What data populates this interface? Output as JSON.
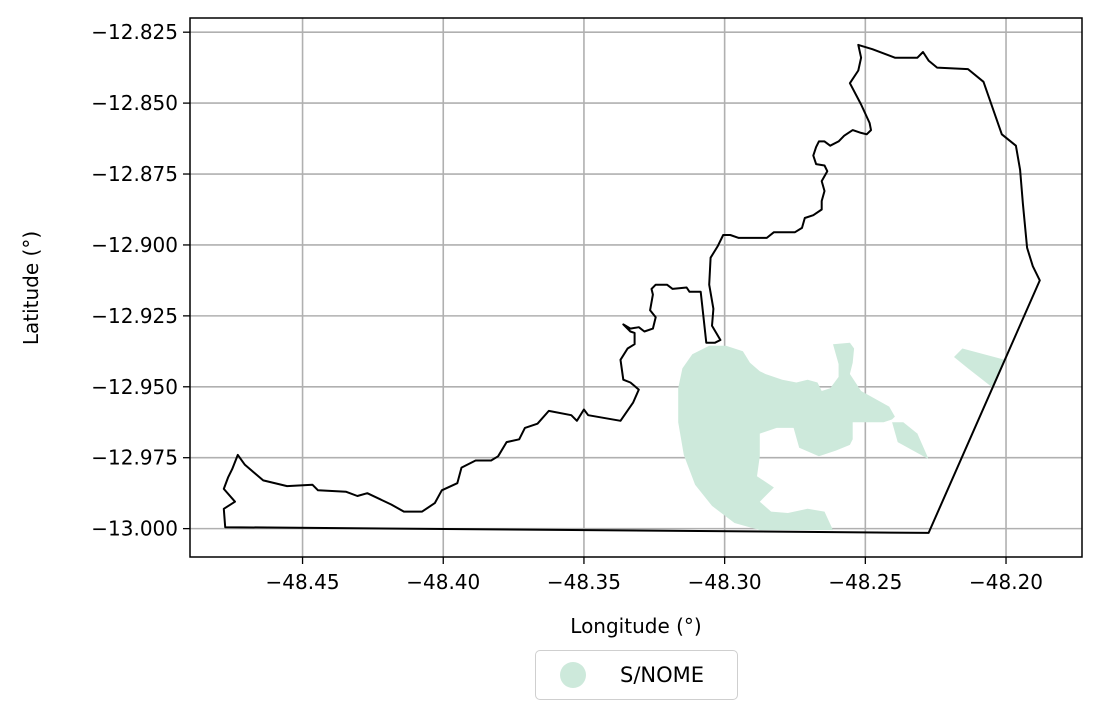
{
  "chart_data": {
    "type": "map",
    "xlabel": "Longitude (°)",
    "ylabel": "Latitude (°)",
    "xlim": [
      -48.49,
      -48.173
    ],
    "ylim": [
      -13.01,
      -12.82
    ],
    "x_ticks": [
      -48.45,
      -48.4,
      -48.35,
      -48.3,
      -48.25,
      -48.2
    ],
    "x_tick_labels": [
      "−48.45",
      "−48.40",
      "−48.35",
      "−48.30",
      "−48.25",
      "−48.20"
    ],
    "y_ticks": [
      -12.825,
      -12.85,
      -12.875,
      -12.9,
      -12.925,
      -12.95,
      -12.975,
      -13.0
    ],
    "y_tick_labels": [
      "−12.825",
      "−12.850",
      "−12.875",
      "−12.900",
      "−12.925",
      "−12.950",
      "−12.975",
      "−13.000"
    ],
    "grid": true,
    "legend_position": "bottom-center, below axes",
    "boundary_color": "#000000",
    "fill_color": "#cde9db",
    "boundary": [
      [
        -48.4775,
        -12.9995
      ],
      [
        -48.478,
        -12.993
      ],
      [
        -48.474,
        -12.9905
      ],
      [
        -48.478,
        -12.986
      ],
      [
        -48.4765,
        -12.982
      ],
      [
        -48.475,
        -12.979
      ],
      [
        -48.473,
        -12.974
      ],
      [
        -48.4705,
        -12.9775
      ],
      [
        -48.464,
        -12.983
      ],
      [
        -48.4555,
        -12.985
      ],
      [
        -48.4465,
        -12.9845
      ],
      [
        -48.4445,
        -12.9865
      ],
      [
        -48.4345,
        -12.987
      ],
      [
        -48.4305,
        -12.9885
      ],
      [
        -48.427,
        -12.9875
      ],
      [
        -48.4185,
        -12.9915
      ],
      [
        -48.414,
        -12.994
      ],
      [
        -48.4075,
        -12.994
      ],
      [
        -48.403,
        -12.991
      ],
      [
        -48.4005,
        -12.9865
      ],
      [
        -48.395,
        -12.984
      ],
      [
        -48.3935,
        -12.9785
      ],
      [
        -48.3885,
        -12.976
      ],
      [
        -48.383,
        -12.976
      ],
      [
        -48.3805,
        -12.9745
      ],
      [
        -48.3775,
        -12.9695
      ],
      [
        -48.373,
        -12.9685
      ],
      [
        -48.371,
        -12.9645
      ],
      [
        -48.3665,
        -12.963
      ],
      [
        -48.3625,
        -12.9585
      ],
      [
        -48.3545,
        -12.96
      ],
      [
        -48.3525,
        -12.962
      ],
      [
        -48.35,
        -12.958
      ],
      [
        -48.3485,
        -12.96
      ],
      [
        -48.337,
        -12.962
      ],
      [
        -48.3325,
        -12.9555
      ],
      [
        -48.3305,
        -12.951
      ],
      [
        -48.3335,
        -12.9485
      ],
      [
        -48.336,
        -12.9475
      ],
      [
        -48.337,
        -12.9405
      ],
      [
        -48.3345,
        -12.9365
      ],
      [
        -48.332,
        -12.935
      ],
      [
        -48.332,
        -12.931
      ],
      [
        -48.3335,
        -12.9305
      ],
      [
        -48.336,
        -12.928
      ],
      [
        -48.3335,
        -12.9295
      ],
      [
        -48.3305,
        -12.929
      ],
      [
        -48.3285,
        -12.9305
      ],
      [
        -48.3255,
        -12.9295
      ],
      [
        -48.3245,
        -12.9255
      ],
      [
        -48.3265,
        -12.923
      ],
      [
        -48.3255,
        -12.9175
      ],
      [
        -48.326,
        -12.9155
      ],
      [
        -48.3245,
        -12.914
      ],
      [
        -48.3205,
        -12.914
      ],
      [
        -48.3185,
        -12.9155
      ],
      [
        -48.3135,
        -12.915
      ],
      [
        -48.3125,
        -12.9165
      ],
      [
        -48.3085,
        -12.9165
      ],
      [
        -48.308,
        -12.921
      ],
      [
        -48.3065,
        -12.9345
      ],
      [
        -48.3035,
        -12.9345
      ],
      [
        -48.3015,
        -12.9335
      ],
      [
        -48.303,
        -12.931
      ],
      [
        -48.3045,
        -12.9285
      ],
      [
        -48.304,
        -12.9225
      ],
      [
        -48.3055,
        -12.914
      ],
      [
        -48.305,
        -12.9045
      ],
      [
        -48.3025,
        -12.9005
      ],
      [
        -48.3005,
        -12.8965
      ],
      [
        -48.298,
        -12.8965
      ],
      [
        -48.295,
        -12.8975
      ],
      [
        -48.285,
        -12.8975
      ],
      [
        -48.2825,
        -12.8955
      ],
      [
        -48.275,
        -12.8955
      ],
      [
        -48.2725,
        -12.894
      ],
      [
        -48.2715,
        -12.8905
      ],
      [
        -48.2685,
        -12.8895
      ],
      [
        -48.2655,
        -12.8875
      ],
      [
        -48.2655,
        -12.8845
      ],
      [
        -48.2645,
        -12.881
      ],
      [
        -48.2655,
        -12.8775
      ],
      [
        -48.2635,
        -12.874
      ],
      [
        -48.2645,
        -12.872
      ],
      [
        -48.2675,
        -12.8715
      ],
      [
        -48.2685,
        -12.8685
      ],
      [
        -48.2675,
        -12.8655
      ],
      [
        -48.2665,
        -12.8635
      ],
      [
        -48.2645,
        -12.8635
      ],
      [
        -48.2625,
        -12.865
      ],
      [
        -48.2595,
        -12.8635
      ],
      [
        -48.2575,
        -12.8615
      ],
      [
        -48.2545,
        -12.8595
      ],
      [
        -48.2515,
        -12.8605
      ],
      [
        -48.2495,
        -12.861
      ],
      [
        -48.248,
        -12.8595
      ],
      [
        -48.2485,
        -12.857
      ],
      [
        -48.2515,
        -12.8505
      ],
      [
        -48.2555,
        -12.843
      ],
      [
        -48.2525,
        -12.8385
      ],
      [
        -48.2515,
        -12.834
      ],
      [
        -48.2525,
        -12.8295
      ],
      [
        -48.2475,
        -12.831
      ],
      [
        -48.2395,
        -12.834
      ],
      [
        -48.2315,
        -12.834
      ],
      [
        -48.2295,
        -12.832
      ],
      [
        -48.2275,
        -12.835
      ],
      [
        -48.2245,
        -12.8375
      ],
      [
        -48.2135,
        -12.838
      ],
      [
        -48.208,
        -12.8425
      ],
      [
        -48.2045,
        -12.8525
      ],
      [
        -48.2015,
        -12.861
      ],
      [
        -48.1965,
        -12.865
      ],
      [
        -48.195,
        -12.8735
      ],
      [
        -48.194,
        -12.8855
      ],
      [
        -48.1925,
        -12.901
      ],
      [
        -48.1905,
        -12.9075
      ],
      [
        -48.188,
        -12.9125
      ],
      [
        -48.2275,
        -13.0015
      ],
      [
        -48.4775,
        -12.9995
      ]
    ],
    "regions": [
      {
        "name": "S/NOME",
        "polygons": [
          [
            [
              -48.3165,
              -12.9625
            ],
            [
              -48.3165,
              -12.9505
            ],
            [
              -48.315,
              -12.9435
            ],
            [
              -48.3115,
              -12.9385
            ],
            [
              -48.3055,
              -12.9355
            ],
            [
              -48.2995,
              -12.9355
            ],
            [
              -48.2935,
              -12.9375
            ],
            [
              -48.291,
              -12.9415
            ],
            [
              -48.2875,
              -12.9445
            ],
            [
              -48.2855,
              -12.9455
            ],
            [
              -48.2795,
              -12.9475
            ],
            [
              -48.2745,
              -12.9485
            ],
            [
              -48.2705,
              -12.9475
            ],
            [
              -48.267,
              -12.9485
            ],
            [
              -48.2655,
              -12.9515
            ],
            [
              -48.2625,
              -12.9505
            ],
            [
              -48.2595,
              -12.9465
            ],
            [
              -48.2595,
              -12.942
            ],
            [
              -48.2615,
              -12.935
            ],
            [
              -48.2555,
              -12.9345
            ],
            [
              -48.254,
              -12.9365
            ],
            [
              -48.2545,
              -12.9415
            ],
            [
              -48.2555,
              -12.9455
            ],
            [
              -48.2515,
              -12.9515
            ],
            [
              -48.2415,
              -12.957
            ],
            [
              -48.2395,
              -12.9605
            ],
            [
              -48.2405,
              -12.9615
            ],
            [
              -48.2435,
              -12.9625
            ],
            [
              -48.2485,
              -12.9625
            ],
            [
              -48.2545,
              -12.9625
            ],
            [
              -48.2545,
              -12.9685
            ],
            [
              -48.2555,
              -12.9705
            ],
            [
              -48.2605,
              -12.9725
            ],
            [
              -48.2665,
              -12.9745
            ],
            [
              -48.2735,
              -12.9715
            ],
            [
              -48.2755,
              -12.9645
            ],
            [
              -48.2815,
              -12.9645
            ],
            [
              -48.2875,
              -12.9665
            ],
            [
              -48.2875,
              -12.9745
            ],
            [
              -48.2885,
              -12.9815
            ],
            [
              -48.2825,
              -12.9855
            ],
            [
              -48.2875,
              -12.9905
            ],
            [
              -48.2835,
              -12.994
            ],
            [
              -48.2775,
              -12.9945
            ],
            [
              -48.2705,
              -12.993
            ],
            [
              -48.2645,
              -12.994
            ],
            [
              -48.2615,
              -13.0005
            ],
            [
              -48.2875,
              -13.0005
            ],
            [
              -48.2965,
              -12.998
            ],
            [
              -48.3045,
              -12.992
            ],
            [
              -48.3105,
              -12.9845
            ],
            [
              -48.3145,
              -12.974
            ],
            [
              -48.3165,
              -12.9625
            ]
          ],
          [
            [
              -48.2405,
              -12.9625
            ],
            [
              -48.2385,
              -12.9695
            ],
            [
              -48.2275,
              -12.9755
            ],
            [
              -48.2315,
              -12.9665
            ],
            [
              -48.2365,
              -12.9625
            ],
            [
              -48.2405,
              -12.9625
            ]
          ],
          [
            [
              -48.2185,
              -12.9395
            ],
            [
              -48.2155,
              -12.9365
            ],
            [
              -48.2005,
              -12.9405
            ],
            [
              -48.2045,
              -12.9505
            ],
            [
              -48.2135,
              -12.9435
            ],
            [
              -48.2185,
              -12.9395
            ]
          ]
        ]
      }
    ],
    "legend": [
      {
        "label": "S/NOME",
        "color": "#cde9db"
      }
    ]
  }
}
